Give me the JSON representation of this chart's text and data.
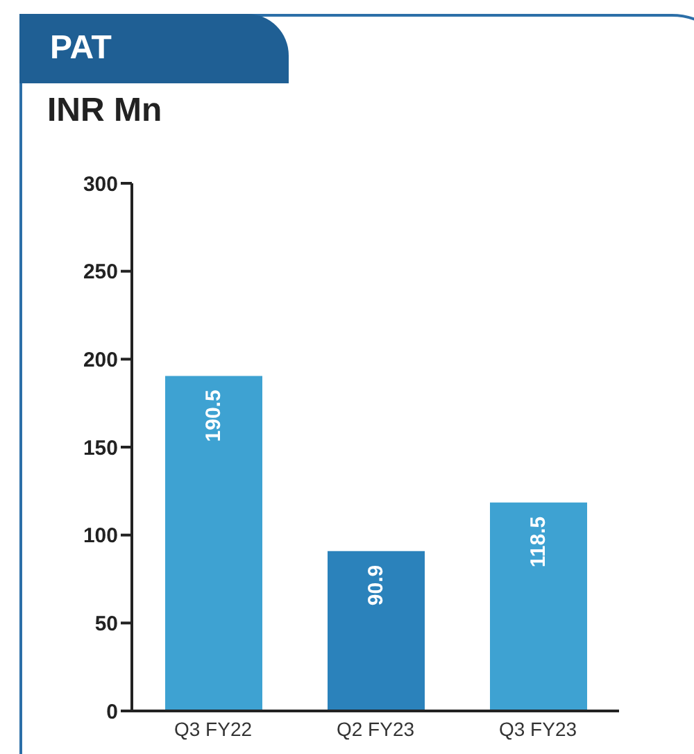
{
  "chart_data": {
    "type": "bar",
    "title": "PAT",
    "subtitle": "INR Mn",
    "categories": [
      "Q3 FY22",
      "Q2 FY23",
      "Q3 FY23"
    ],
    "values": [
      190.5,
      90.9,
      118.5
    ],
    "colors": [
      "#3ea2d2",
      "#2b82bb",
      "#3ea2d2"
    ],
    "ylim": [
      0,
      300
    ],
    "yticks": [
      0,
      50,
      100,
      150,
      200,
      250,
      300
    ],
    "data_labels": true,
    "grid": false,
    "legend": false
  }
}
